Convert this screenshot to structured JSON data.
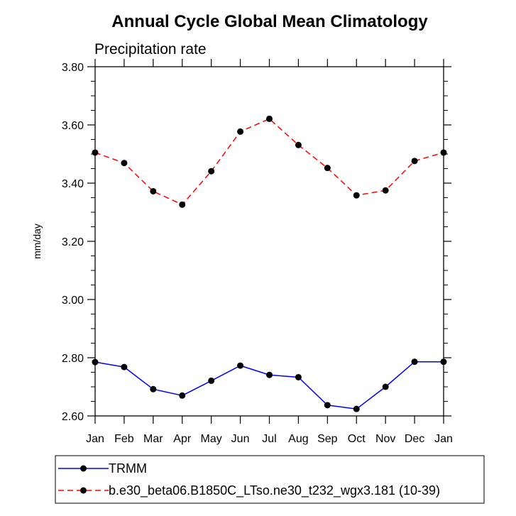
{
  "chart_data": {
    "type": "line",
    "title": "Annual Cycle Global Mean Climatology",
    "subtitle": "Precipitation rate",
    "ylabel": "mm/day",
    "xlabel": "",
    "categories": [
      "Jan",
      "Feb",
      "Mar",
      "Apr",
      "May",
      "Jun",
      "Jul",
      "Aug",
      "Sep",
      "Oct",
      "Nov",
      "Dec",
      "Jan"
    ],
    "ylim": [
      2.6,
      3.8
    ],
    "yticks": [
      "2.60",
      "2.80",
      "3.00",
      "3.20",
      "3.40",
      "3.60",
      "3.80"
    ],
    "grid": false,
    "legend_position": "bottom",
    "series": [
      {
        "name": "TRMM",
        "color": "#0000ff",
        "line_style": "solid",
        "marker": "filled-circle",
        "values": [
          2.785,
          2.768,
          2.692,
          2.67,
          2.721,
          2.773,
          2.741,
          2.733,
          2.637,
          2.624,
          2.7,
          2.786,
          2.786
        ]
      },
      {
        "name": "b.e30_beta06.B1850C_LTso.ne30_t232_wgx3.181 (10-39)",
        "color": "#ff0000",
        "line_style": "dashed",
        "marker": "filled-circle",
        "values": [
          3.505,
          3.469,
          3.372,
          3.326,
          3.441,
          3.577,
          3.621,
          3.531,
          3.452,
          3.358,
          3.375,
          3.476,
          3.505
        ]
      }
    ]
  }
}
